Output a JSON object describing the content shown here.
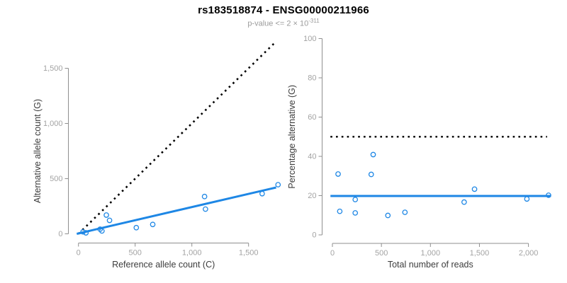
{
  "header": {
    "title": "rs183518874 - ENSG00000211966",
    "subtitle_base": "p-value <= 2 × 10",
    "subtitle_exponent": "-311"
  },
  "colors": {
    "accent_blue": "#1e87e5",
    "reference_line": "#000000",
    "axis": "#8f8f8f",
    "tick_label": "#a3a3a3",
    "axis_title": "#3c3c3c",
    "background": "#ffffff"
  },
  "chart_data": [
    {
      "type": "scatter",
      "panel": "left",
      "xlabel": "Reference allele count (C)",
      "ylabel": "Alternative allele count (G)",
      "x_ticks": [
        0,
        500,
        1000,
        1500
      ],
      "y_ticks": [
        0,
        500,
        1000,
        1500
      ],
      "xlim": [
        0,
        1760
      ],
      "ylim": [
        0,
        1760
      ],
      "grid": false,
      "legend": "none",
      "marker": "open-circle",
      "points": [
        {
          "x": 40,
          "y": 18
        },
        {
          "x": 66,
          "y": 9
        },
        {
          "x": 191,
          "y": 42
        },
        {
          "x": 207,
          "y": 26
        },
        {
          "x": 246,
          "y": 170
        },
        {
          "x": 274,
          "y": 122
        },
        {
          "x": 510,
          "y": 56
        },
        {
          "x": 655,
          "y": 85
        },
        {
          "x": 1112,
          "y": 338
        },
        {
          "x": 1120,
          "y": 224
        },
        {
          "x": 1620,
          "y": 364
        },
        {
          "x": 1760,
          "y": 445
        }
      ],
      "lines": [
        {
          "name": "identity",
          "style": "dotted",
          "color_key": "reference_line",
          "x1": 0,
          "y1": 0,
          "x2": 1745,
          "y2": 1745
        },
        {
          "name": "fit",
          "style": "solid",
          "color_key": "accent_blue",
          "x1": -15,
          "y1": 0,
          "x2": 1743,
          "y2": 420
        }
      ]
    },
    {
      "type": "scatter",
      "panel": "right",
      "xlabel": "Total number of reads",
      "ylabel": "Percentage alternative (G)",
      "x_ticks": [
        0,
        500,
        1000,
        1500,
        2000
      ],
      "y_ticks": [
        0,
        20,
        40,
        60,
        80,
        100
      ],
      "xlim": [
        0,
        2210
      ],
      "ylim": [
        0,
        100
      ],
      "grid": false,
      "legend": "none",
      "marker": "open-circle",
      "points": [
        {
          "x": 58,
          "y": 31.0
        },
        {
          "x": 75,
          "y": 12.0
        },
        {
          "x": 233,
          "y": 18.0
        },
        {
          "x": 233,
          "y": 11.2
        },
        {
          "x": 416,
          "y": 40.9
        },
        {
          "x": 396,
          "y": 30.8
        },
        {
          "x": 566,
          "y": 9.9
        },
        {
          "x": 740,
          "y": 11.5
        },
        {
          "x": 1450,
          "y": 23.3
        },
        {
          "x": 1344,
          "y": 16.7
        },
        {
          "x": 1984,
          "y": 18.3
        },
        {
          "x": 2205,
          "y": 20.2
        }
      ],
      "lines": [
        {
          "name": "expected",
          "style": "dotted",
          "color_key": "reference_line",
          "x1": -20,
          "y1": 50,
          "x2": 2190,
          "y2": 50
        },
        {
          "name": "fit",
          "style": "solid",
          "color_key": "accent_blue",
          "x1": -20,
          "y1": 19.8,
          "x2": 2230,
          "y2": 19.8
        }
      ]
    }
  ]
}
